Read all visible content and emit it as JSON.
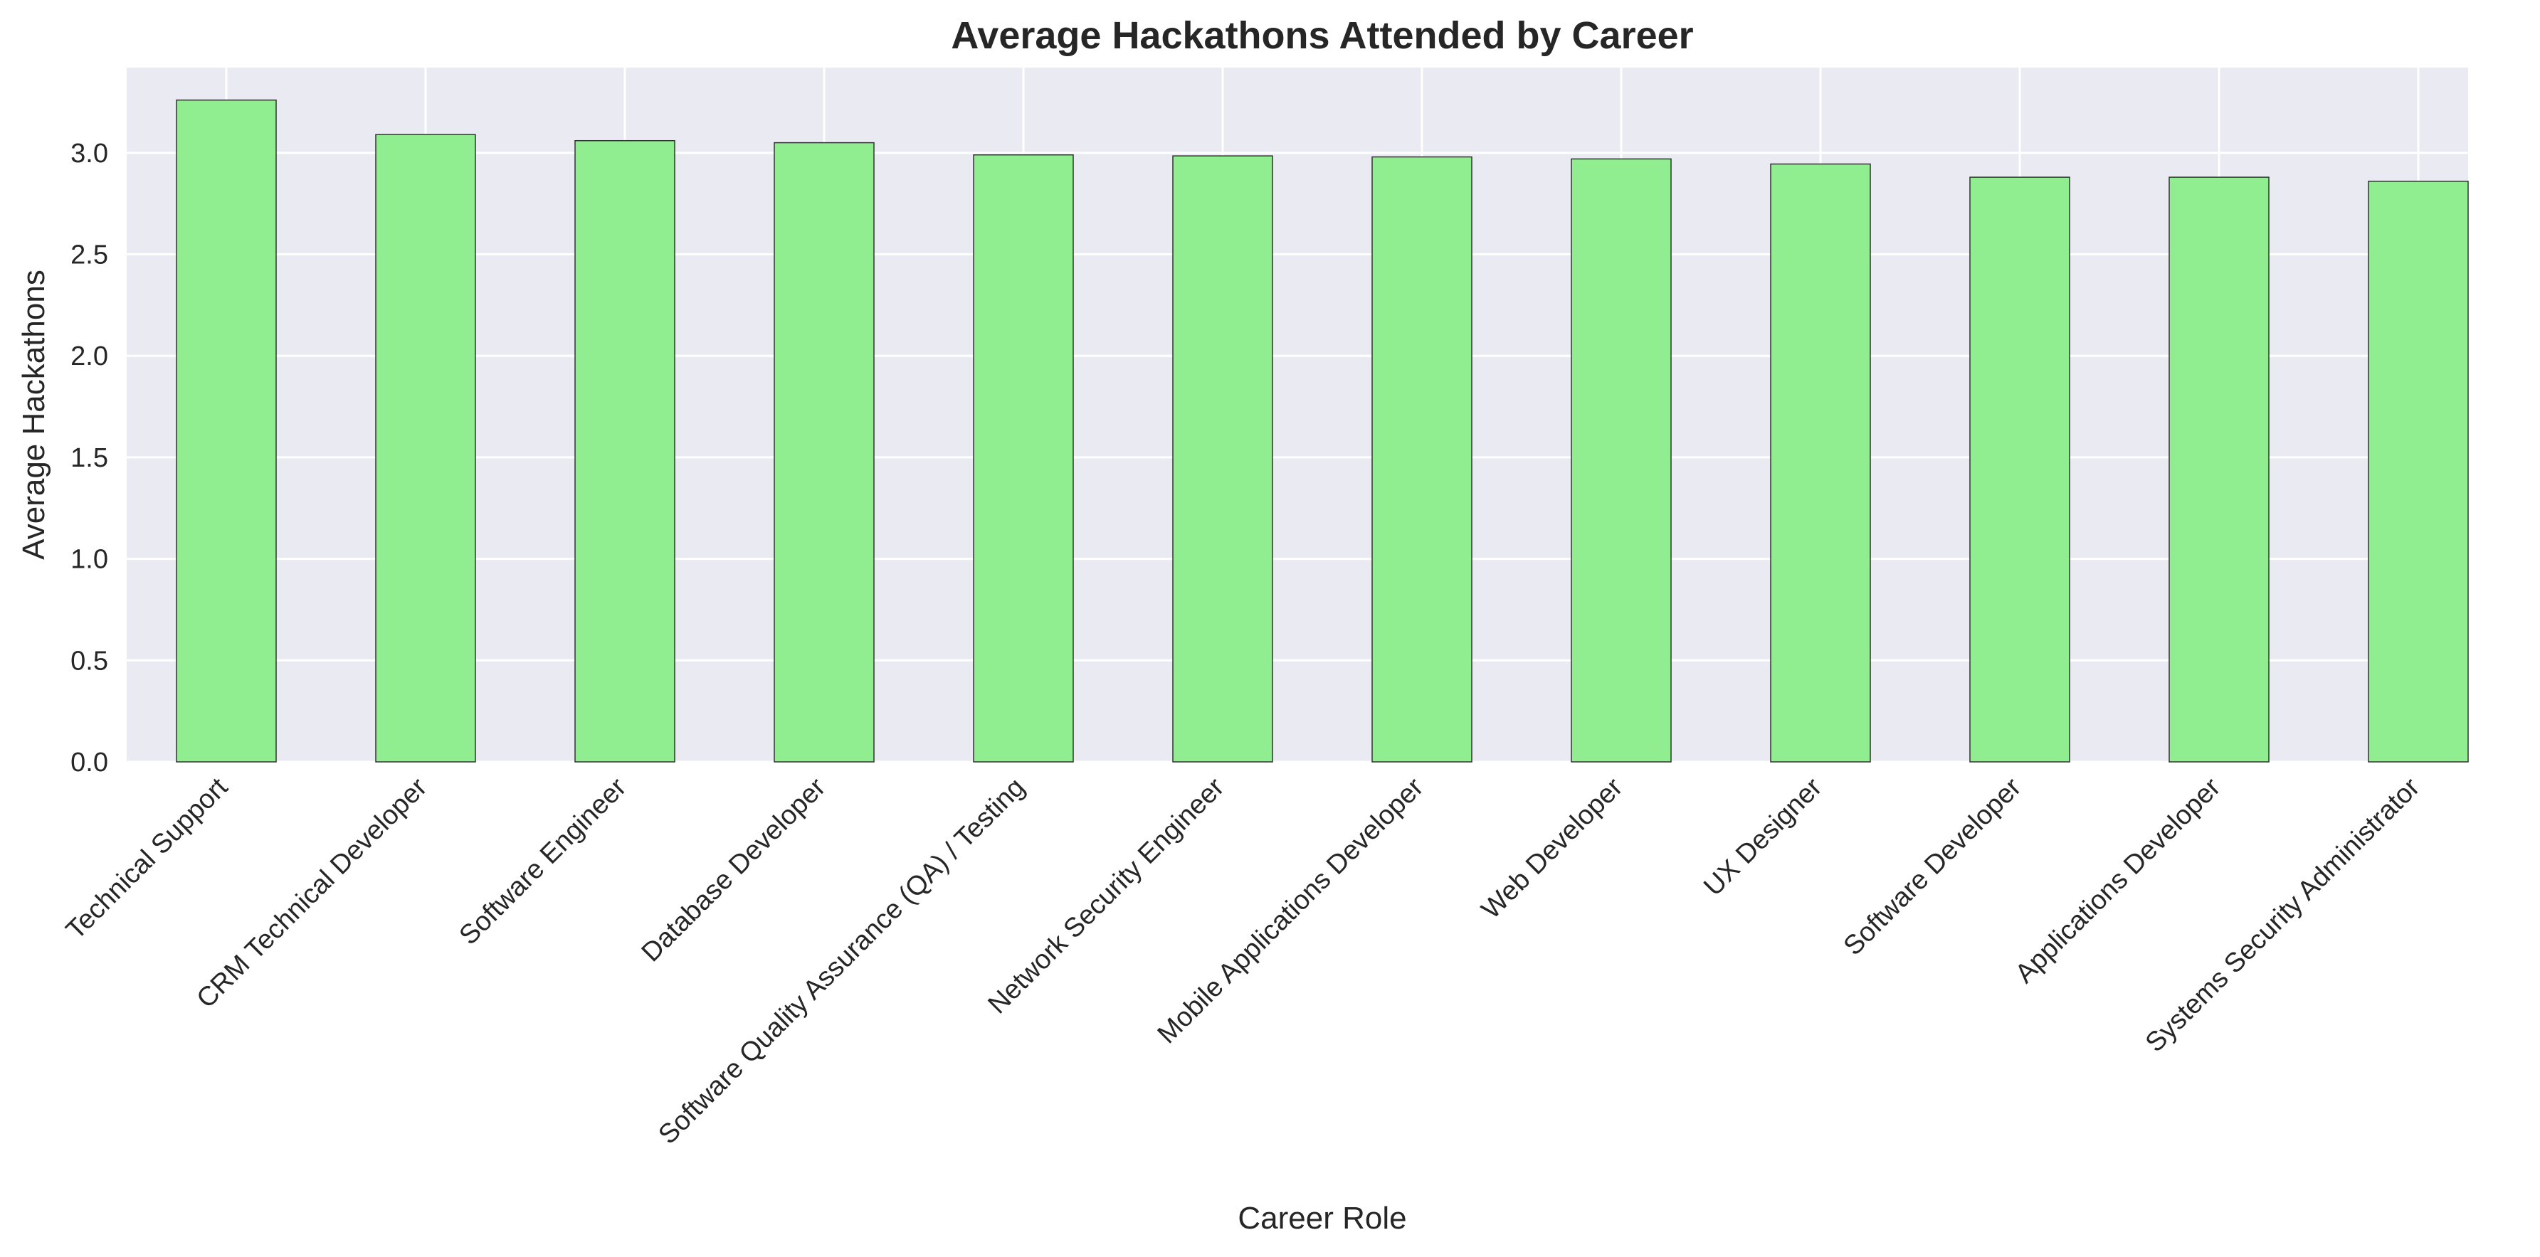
{
  "chart_data": {
    "type": "bar",
    "title": "Average Hackathons Attended by Career",
    "xlabel": "Career Role",
    "ylabel": "Average Hackathons",
    "categories": [
      "Technical Support",
      "CRM Technical Developer",
      "Software Engineer",
      "Database Developer",
      "Software Quality Assurance (QA) / Testing",
      "Network Security Engineer",
      "Mobile Applications Developer",
      "Web Developer",
      "UX Designer",
      "Software Developer",
      "Applications Developer",
      "Systems Security Administrator"
    ],
    "values": [
      3.26,
      3.09,
      3.06,
      3.05,
      2.99,
      2.985,
      2.98,
      2.97,
      2.945,
      2.88,
      2.88,
      2.86
    ],
    "ylim": [
      0,
      3.42
    ],
    "yticks": [
      0.0,
      0.5,
      1.0,
      1.5,
      2.0,
      2.5,
      3.0
    ],
    "ytick_labels": [
      "0.0",
      "0.5",
      "1.0",
      "1.5",
      "2.0",
      "2.5",
      "3.0"
    ],
    "grid": true,
    "colors": {
      "bar_fill": "#90ee90",
      "bar_edge": "#333333",
      "plot_background": "#eaeaf2",
      "grid": "#ffffff"
    }
  }
}
